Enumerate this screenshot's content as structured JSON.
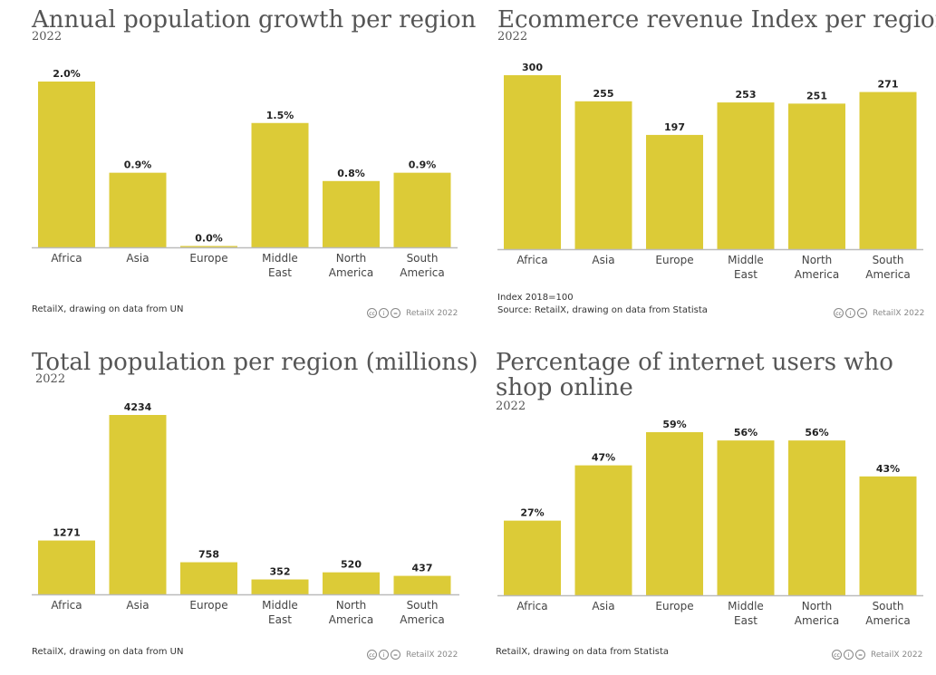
{
  "chart_data": [
    {
      "type": "bar",
      "title": "Annual population growth per region",
      "subtitle": "2022",
      "categories": [
        "Africa",
        "Asia",
        "Europe",
        "Middle East",
        "North America",
        "South America"
      ],
      "category_lines": [
        [
          "Africa"
        ],
        [
          "Asia"
        ],
        [
          "Europe"
        ],
        [
          "Middle",
          "East"
        ],
        [
          "North",
          "America"
        ],
        [
          "South",
          "America"
        ]
      ],
      "values": [
        2.0,
        0.9,
        0.0,
        1.5,
        0.8,
        0.9
      ],
      "value_labels": [
        "2.0%",
        "0.9%",
        "0.0%",
        "1.5%",
        "0.8%",
        "0.9%"
      ],
      "ylim": [
        0,
        2.0
      ],
      "grid": false,
      "notes": [],
      "source": "RetailX, drawing on data from UN",
      "credit": "RetailX 2022"
    },
    {
      "type": "bar",
      "title": "Ecommerce revenue Index per region",
      "subtitle": "2022",
      "categories": [
        "Africa",
        "Asia",
        "Europe",
        "Middle East",
        "North America",
        "South America"
      ],
      "category_lines": [
        [
          "Africa"
        ],
        [
          "Asia"
        ],
        [
          "Europe"
        ],
        [
          "Middle",
          "East"
        ],
        [
          "North",
          "America"
        ],
        [
          "South",
          "America"
        ]
      ],
      "values": [
        300,
        255,
        197,
        253,
        251,
        271
      ],
      "value_labels": [
        "300",
        "255",
        "197",
        "253",
        "251",
        "271"
      ],
      "ylim": [
        0,
        300
      ],
      "grid": false,
      "notes": [
        "Index 2018=100"
      ],
      "source": "Source: RetailX, drawing on data from Statista",
      "credit": "RetailX 2022"
    },
    {
      "type": "bar",
      "title": "Total population per region (millions)",
      "subtitle": "2022",
      "categories": [
        "Africa",
        "Asia",
        "Europe",
        "Middle East",
        "North America",
        "South America"
      ],
      "category_lines": [
        [
          "Africa"
        ],
        [
          "Asia"
        ],
        [
          "Europe"
        ],
        [
          "Middle",
          "East"
        ],
        [
          "North",
          "America"
        ],
        [
          "South",
          "America"
        ]
      ],
      "values": [
        1271,
        4234,
        758,
        352,
        520,
        437
      ],
      "value_labels": [
        "1271",
        "4234",
        "758",
        "352",
        "520",
        "437"
      ],
      "ylim": [
        0,
        4234
      ],
      "grid": false,
      "notes": [],
      "source": "RetailX, drawing on data from UN",
      "credit": "RetailX 2022"
    },
    {
      "type": "bar",
      "title": "Percentage of internet users who shop online",
      "title_lines": [
        "Percentage of internet users who",
        "shop online"
      ],
      "subtitle": "2022",
      "categories": [
        "Africa",
        "Asia",
        "Europe",
        "Middle East",
        "North America",
        "South America"
      ],
      "category_lines": [
        [
          "Africa"
        ],
        [
          "Asia"
        ],
        [
          "Europe"
        ],
        [
          "Middle",
          "East"
        ],
        [
          "North",
          "America"
        ],
        [
          "South",
          "America"
        ]
      ],
      "values": [
        27,
        47,
        59,
        56,
        56,
        43
      ],
      "value_labels": [
        "27%",
        "47%",
        "59%",
        "56%",
        "56%",
        "43%"
      ],
      "ylim": [
        0,
        59
      ],
      "grid": false,
      "notes": [],
      "source": "RetailX, drawing on data from Statista",
      "credit": "RetailX 2022"
    }
  ],
  "colors": {
    "bar": "#dccb37",
    "axis": "#bbbbbb",
    "text": "#222222",
    "title": "#555555"
  },
  "license_icon": "creative-commons-by-nd-icon"
}
